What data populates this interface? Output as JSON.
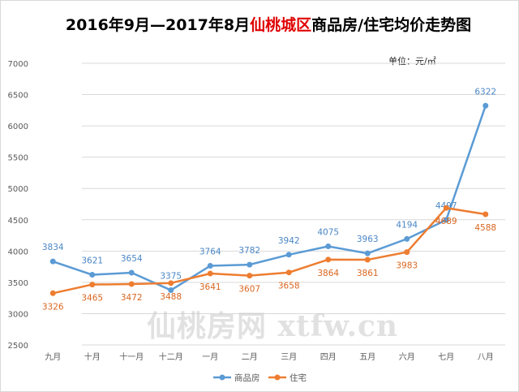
{
  "chart_data": {
    "type": "line",
    "title_parts": [
      "2016年9月—2017年8月",
      "仙桃城区",
      "商品房/住宅均价走势图"
    ],
    "unit": "单位：元/㎡",
    "categories": [
      "九月",
      "十月",
      "十一月",
      "十二月",
      "一月",
      "二月",
      "三月",
      "四月",
      "五月",
      "六月",
      "七月",
      "八月"
    ],
    "ylim": [
      2500,
      7000
    ],
    "yticks": [
      2500,
      3000,
      3500,
      4000,
      4500,
      5000,
      5500,
      6000,
      6500,
      7000
    ],
    "grid": true,
    "legend_position": "bottom",
    "series": [
      {
        "name": "商品房",
        "color": "#5b9bd5",
        "values": [
          3834,
          3621,
          3654,
          3375,
          3764,
          3782,
          3942,
          4075,
          3963,
          4194,
          4497,
          6322
        ]
      },
      {
        "name": "住宅",
        "color": "#ed7d31",
        "values": [
          3326,
          3465,
          3472,
          3488,
          3641,
          3607,
          3658,
          3864,
          3861,
          3983,
          4689,
          4588
        ]
      }
    ]
  },
  "watermark": "仙桃房网 xtfw.cn"
}
